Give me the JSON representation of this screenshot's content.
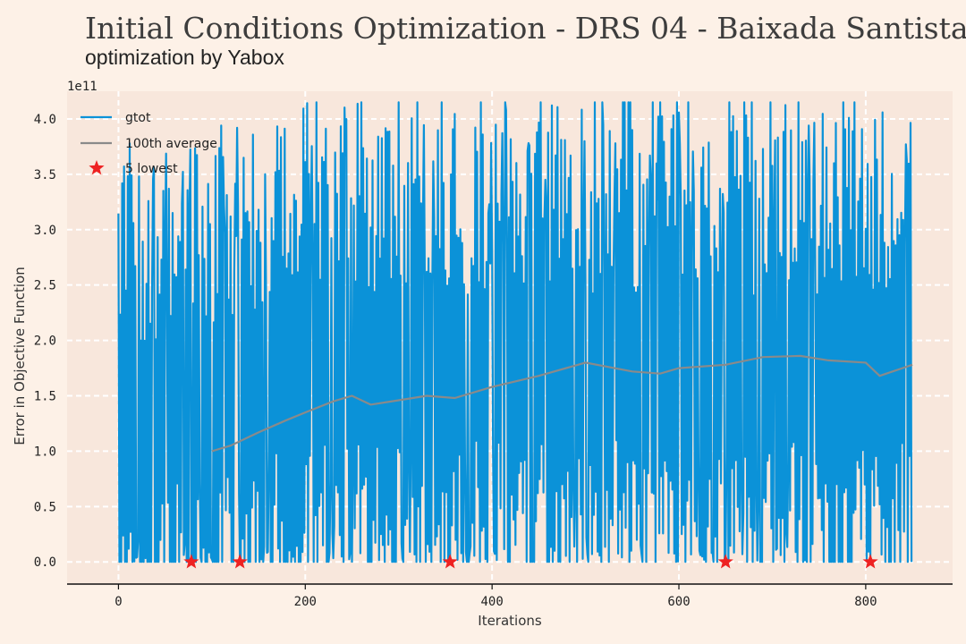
{
  "header": {
    "title": "Initial Conditions Optimization - DRS 04 - Baixada Santista",
    "subtitle": "optimization by Yabox"
  },
  "chart_data": {
    "type": "line",
    "title": "Initial Conditions Optimization - DRS 04 - Baixada Santista",
    "subtitle": "optimization by Yabox",
    "xlabel": "Iterations",
    "ylabel": "Error in Objective Function",
    "y_scale_note": "1e11",
    "xlim": [
      -55,
      893
    ],
    "ylim": [
      -0.2,
      4.25
    ],
    "x_ticks": [
      0,
      200,
      400,
      600,
      800
    ],
    "x_tick_labels": [
      "0",
      "200",
      "400",
      "600",
      "800"
    ],
    "y_ticks": [
      0.0,
      0.5,
      1.0,
      1.5,
      2.0,
      2.5,
      3.0,
      3.5,
      4.0
    ],
    "y_tick_labels": [
      "0.0",
      "0.5",
      "1.0",
      "1.5",
      "2.0",
      "2.5",
      "3.0",
      "3.5",
      "4.0"
    ],
    "grid": true,
    "legend_position": "top-left",
    "series": [
      {
        "name": "gtot",
        "color": "#0b92d8",
        "n_points": 850,
        "note": "highly oscillating error values between about 0 and 4.1"
      },
      {
        "name": "100th average",
        "color": "#8a8a8a",
        "x": [
          100,
          120,
          150,
          180,
          200,
          230,
          250,
          270,
          300,
          330,
          360,
          400,
          450,
          500,
          550,
          580,
          600,
          650,
          690,
          730,
          760,
          800,
          815,
          850
        ],
        "y": [
          1.0,
          1.05,
          1.17,
          1.28,
          1.35,
          1.45,
          1.5,
          1.42,
          1.46,
          1.5,
          1.48,
          1.58,
          1.68,
          1.8,
          1.72,
          1.7,
          1.75,
          1.78,
          1.85,
          1.86,
          1.82,
          1.8,
          1.68,
          1.78
        ]
      },
      {
        "name": "5 lowest",
        "color": "#ee2222",
        "marker": "star",
        "x": [
          78,
          130,
          355,
          650,
          805
        ],
        "y": [
          0.0,
          0.0,
          0.0,
          0.0,
          0.0
        ]
      }
    ]
  }
}
